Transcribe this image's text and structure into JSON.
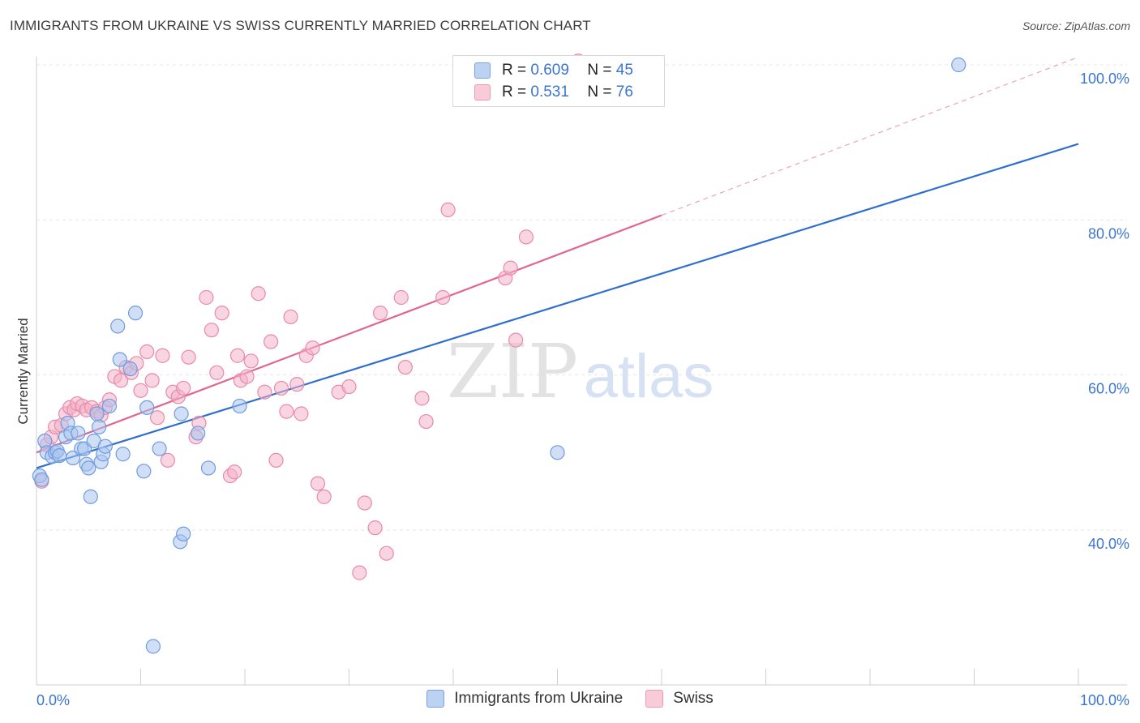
{
  "header": {
    "title": "IMMIGRANTS FROM UKRAINE VS SWISS CURRENTLY MARRIED CORRELATION CHART",
    "source": "Source: ZipAtlas.com"
  },
  "watermark": {
    "zip": "ZIP",
    "atlas": "atlas"
  },
  "legend_box": {
    "rows": [
      {
        "r_label": "R =",
        "r_value": "0.609",
        "n_label": "N =",
        "n_value": "45",
        "color": "#a9c4ee"
      },
      {
        "r_label": "R =",
        "r_value": "0.531",
        "n_label": "N =",
        "n_value": "76",
        "color": "#f4b3c8"
      }
    ]
  },
  "colors": {
    "ukraine_fill": "#a9c4ee",
    "ukraine_stroke": "#6f9be0",
    "ukraine_line": "#2f6fcf",
    "swiss_fill": "#f4b3c8",
    "swiss_stroke": "#e88aa8",
    "swiss_line": "#e0668f",
    "tick_label": "#3b75d1"
  },
  "chart_data": {
    "type": "scatter",
    "title": "IMMIGRANTS FROM UKRAINE VS SWISS CURRENTLY MARRIED CORRELATION CHART",
    "xlabel": "",
    "ylabel": "Currently Married",
    "xlim": [
      0,
      100
    ],
    "ylim": [
      20,
      102
    ],
    "x_tick_labels": [
      {
        "value": 0,
        "label": "0.0%"
      },
      {
        "value": 100,
        "label": "100.0%"
      }
    ],
    "y_tick_labels": [
      {
        "value": 40,
        "label": "40.0%"
      },
      {
        "value": 60,
        "label": "60.0%"
      },
      {
        "value": 80,
        "label": "80.0%"
      },
      {
        "value": 100,
        "label": "100.0%"
      }
    ],
    "grid": true,
    "legend_position": "bottom",
    "series": [
      {
        "name": "Immigrants from Ukraine",
        "r": "0.609",
        "n": "45",
        "trend": {
          "x0": 0,
          "y0": 48.0,
          "x1": 100,
          "y1": 89.8,
          "dashed_from": null
        },
        "points": [
          [
            0.3,
            47.0
          ],
          [
            0.5,
            46.5
          ],
          [
            0.8,
            51.5
          ],
          [
            1.0,
            50.0
          ],
          [
            1.5,
            49.5
          ],
          [
            1.8,
            50.0
          ],
          [
            2.0,
            50.2
          ],
          [
            2.2,
            49.6
          ],
          [
            2.8,
            52.0
          ],
          [
            3.0,
            53.8
          ],
          [
            3.3,
            52.5
          ],
          [
            3.5,
            49.3
          ],
          [
            4.0,
            52.5
          ],
          [
            4.3,
            50.5
          ],
          [
            4.6,
            50.5
          ],
          [
            4.8,
            48.5
          ],
          [
            5.0,
            48.0
          ],
          [
            5.2,
            44.3
          ],
          [
            5.5,
            51.5
          ],
          [
            5.8,
            55.0
          ],
          [
            6.0,
            53.3
          ],
          [
            6.2,
            48.8
          ],
          [
            6.4,
            49.8
          ],
          [
            6.6,
            50.8
          ],
          [
            7.0,
            56.0
          ],
          [
            7.8,
            66.3
          ],
          [
            8.0,
            62.0
          ],
          [
            8.3,
            49.8
          ],
          [
            9.0,
            60.8
          ],
          [
            9.5,
            68.0
          ],
          [
            10.3,
            47.6
          ],
          [
            10.6,
            55.8
          ],
          [
            11.2,
            25.0
          ],
          [
            11.8,
            50.5
          ],
          [
            13.8,
            38.5
          ],
          [
            14.1,
            39.5
          ],
          [
            13.9,
            55.0
          ],
          [
            15.5,
            52.5
          ],
          [
            16.5,
            48.0
          ],
          [
            19.5,
            56.0
          ],
          [
            50.0,
            50.0
          ],
          [
            88.5,
            100.0
          ]
        ]
      },
      {
        "name": "Swiss",
        "r": "0.531",
        "n": "76",
        "trend": {
          "x0": 0,
          "y0": 50.0,
          "x1": 100,
          "y1": 101.0,
          "dashed_from": 60
        },
        "points": [
          [
            0.5,
            46.3
          ],
          [
            1.0,
            51.0
          ],
          [
            1.4,
            52.0
          ],
          [
            1.8,
            53.3
          ],
          [
            2.4,
            53.5
          ],
          [
            2.8,
            55.0
          ],
          [
            3.2,
            55.8
          ],
          [
            3.6,
            55.5
          ],
          [
            3.9,
            56.3
          ],
          [
            4.4,
            56.0
          ],
          [
            4.8,
            55.5
          ],
          [
            5.3,
            55.8
          ],
          [
            5.8,
            55.3
          ],
          [
            6.2,
            54.8
          ],
          [
            6.6,
            55.8
          ],
          [
            7.0,
            56.8
          ],
          [
            7.5,
            59.8
          ],
          [
            8.1,
            59.3
          ],
          [
            8.6,
            61.0
          ],
          [
            9.1,
            60.3
          ],
          [
            9.6,
            61.5
          ],
          [
            10.0,
            58.0
          ],
          [
            10.6,
            63.0
          ],
          [
            11.1,
            59.3
          ],
          [
            11.6,
            54.5
          ],
          [
            12.1,
            62.5
          ],
          [
            12.6,
            49.0
          ],
          [
            13.1,
            57.8
          ],
          [
            13.6,
            57.2
          ],
          [
            14.1,
            58.3
          ],
          [
            14.6,
            62.3
          ],
          [
            15.3,
            52.0
          ],
          [
            15.6,
            53.8
          ],
          [
            16.3,
            70.0
          ],
          [
            16.8,
            65.8
          ],
          [
            17.3,
            60.3
          ],
          [
            17.8,
            68.0
          ],
          [
            18.6,
            47.0
          ],
          [
            19.0,
            47.5
          ],
          [
            19.3,
            62.5
          ],
          [
            19.6,
            59.3
          ],
          [
            20.2,
            59.8
          ],
          [
            20.6,
            61.8
          ],
          [
            21.3,
            70.5
          ],
          [
            21.9,
            57.8
          ],
          [
            22.5,
            64.3
          ],
          [
            23.0,
            49.0
          ],
          [
            23.5,
            58.3
          ],
          [
            24.0,
            55.3
          ],
          [
            24.4,
            67.5
          ],
          [
            25.0,
            58.8
          ],
          [
            25.4,
            55.0
          ],
          [
            25.9,
            62.5
          ],
          [
            26.5,
            63.5
          ],
          [
            27.0,
            46.0
          ],
          [
            27.6,
            44.3
          ],
          [
            29.0,
            57.8
          ],
          [
            30.0,
            58.5
          ],
          [
            31.0,
            34.5
          ],
          [
            31.5,
            43.5
          ],
          [
            32.5,
            40.3
          ],
          [
            33.0,
            68.0
          ],
          [
            33.6,
            37.0
          ],
          [
            35.0,
            70.0
          ],
          [
            35.4,
            61.0
          ],
          [
            37.0,
            57.0
          ],
          [
            37.4,
            54.0
          ],
          [
            39.0,
            70.0
          ],
          [
            39.5,
            81.3
          ],
          [
            45.0,
            72.5
          ],
          [
            45.5,
            73.8
          ],
          [
            46.0,
            64.5
          ],
          [
            47.0,
            77.8
          ],
          [
            52.0,
            100.5
          ]
        ]
      }
    ]
  }
}
